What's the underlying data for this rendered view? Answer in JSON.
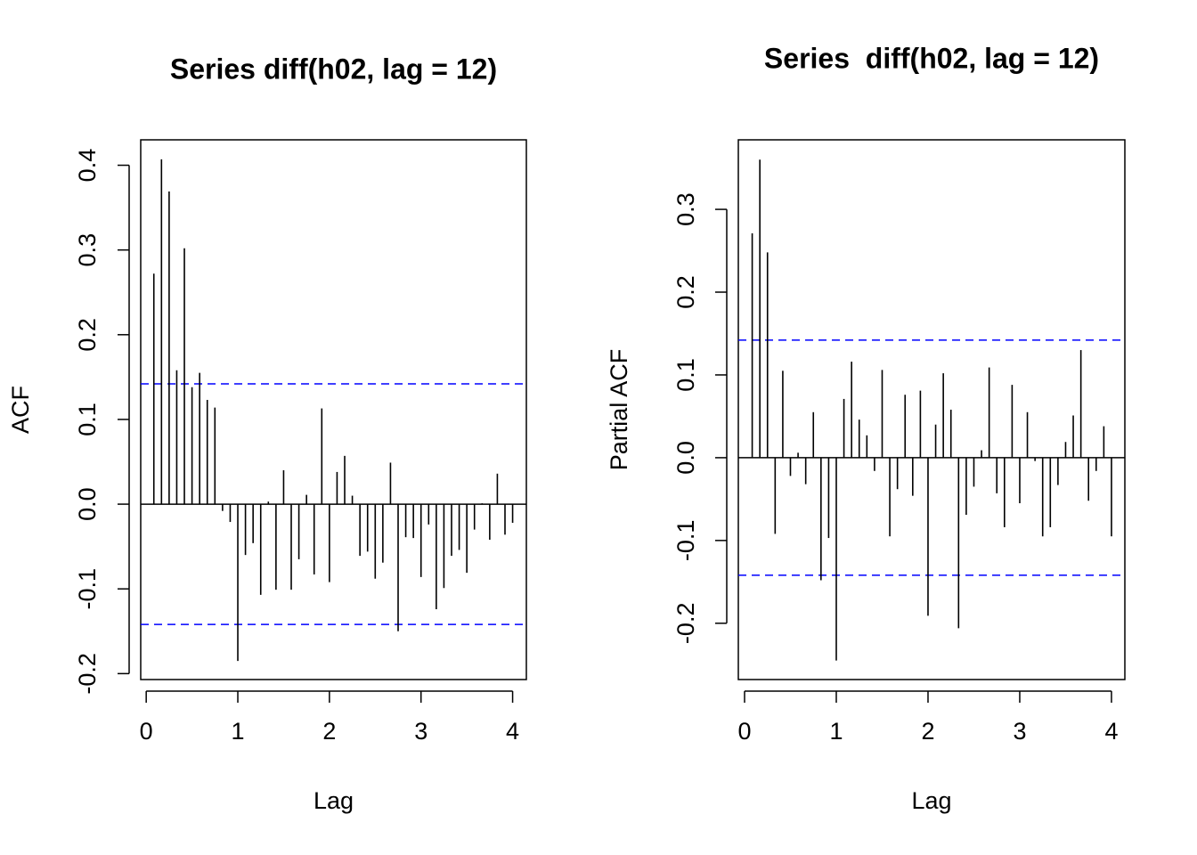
{
  "chart_data": [
    {
      "type": "bar",
      "title": "Series diff(h02, lag = 12)",
      "xlabel": "Lag",
      "ylabel": "ACF",
      "color": "#000000",
      "x": [
        0.0833,
        0.1667,
        0.25,
        0.3333,
        0.4167,
        0.5,
        0.5833,
        0.6667,
        0.75,
        0.8333,
        0.9167,
        1,
        1.0833,
        1.1667,
        1.25,
        1.3333,
        1.4167,
        1.5,
        1.5833,
        1.6667,
        1.75,
        1.8333,
        1.9167,
        2,
        2.0833,
        2.1667,
        2.25,
        2.3333,
        2.4167,
        2.5,
        2.5833,
        2.6667,
        2.75,
        2.8333,
        2.9167,
        3,
        3.0833,
        3.1667,
        3.25,
        3.3333,
        3.4167,
        3.5,
        3.5833,
        3.6667,
        3.75,
        3.8333,
        3.9167,
        4
      ],
      "values": [
        0.272,
        0.407,
        0.369,
        0.158,
        0.302,
        0.138,
        0.155,
        0.123,
        0.114,
        -0.008,
        -0.021,
        -0.185,
        -0.06,
        -0.046,
        -0.107,
        0.003,
        -0.101,
        0.04,
        -0.101,
        -0.065,
        0.011,
        -0.083,
        0.113,
        -0.092,
        0.038,
        0.057,
        0.01,
        -0.061,
        -0.056,
        -0.088,
        -0.069,
        0.049,
        -0.15,
        -0.039,
        -0.04,
        -0.086,
        -0.024,
        -0.124,
        -0.099,
        -0.061,
        -0.054,
        -0.081,
        -0.03,
        0.001,
        -0.042,
        0.036,
        -0.036,
        -0.022
      ],
      "confidence_lines": {
        "values": [
          0.142,
          -0.142
        ],
        "color": "#0000ff"
      },
      "xlim": [
        -0.06,
        4.15
      ],
      "ylim": [
        -0.207,
        0.43
      ],
      "xticks": [
        0,
        1,
        2,
        3,
        4
      ],
      "yticks": [
        -0.2,
        -0.1,
        {
          "value": 0,
          "label": "0.0"
        },
        0.1,
        0.2,
        0.3,
        0.4
      ]
    },
    {
      "type": "bar",
      "title": "Series  diff(h02, lag = 12)",
      "xlabel": "Lag",
      "ylabel": "Partial ACF",
      "color": "#000000",
      "x": [
        0.0833,
        0.1667,
        0.25,
        0.3333,
        0.4167,
        0.5,
        0.5833,
        0.6667,
        0.75,
        0.8333,
        0.9167,
        1,
        1.0833,
        1.1667,
        1.25,
        1.3333,
        1.4167,
        1.5,
        1.5833,
        1.6667,
        1.75,
        1.8333,
        1.9167,
        2,
        2.0833,
        2.1667,
        2.25,
        2.3333,
        2.4167,
        2.5,
        2.5833,
        2.6667,
        2.75,
        2.8333,
        2.9167,
        3,
        3.0833,
        3.1667,
        3.25,
        3.3333,
        3.4167,
        3.5,
        3.5833,
        3.6667,
        3.75,
        3.8333,
        3.9167,
        4
      ],
      "values": [
        0.271,
        0.36,
        0.248,
        -0.092,
        0.105,
        -0.022,
        0.006,
        -0.032,
        0.055,
        -0.148,
        -0.097,
        -0.245,
        0.071,
        0.116,
        0.046,
        0.027,
        -0.016,
        0.106,
        -0.095,
        -0.038,
        0.076,
        -0.046,
        0.081,
        -0.191,
        0.04,
        0.102,
        0.058,
        -0.206,
        -0.069,
        -0.035,
        0.009,
        0.109,
        -0.043,
        -0.084,
        0.088,
        -0.055,
        0.055,
        -0.004,
        -0.095,
        -0.084,
        -0.033,
        0.019,
        0.051,
        0.13,
        -0.052,
        -0.016,
        0.038,
        -0.095
      ],
      "confidence_lines": {
        "values": [
          0.142,
          -0.142
        ],
        "color": "#0000ff"
      },
      "xlim": [
        -0.068,
        4.146
      ],
      "ylim": [
        -0.268,
        0.384
      ],
      "xticks": [
        0,
        1,
        2,
        3,
        4
      ],
      "yticks": [
        -0.2,
        -0.1,
        {
          "value": 0,
          "label": "0.0"
        },
        0.1,
        0.2,
        0.3
      ]
    }
  ]
}
